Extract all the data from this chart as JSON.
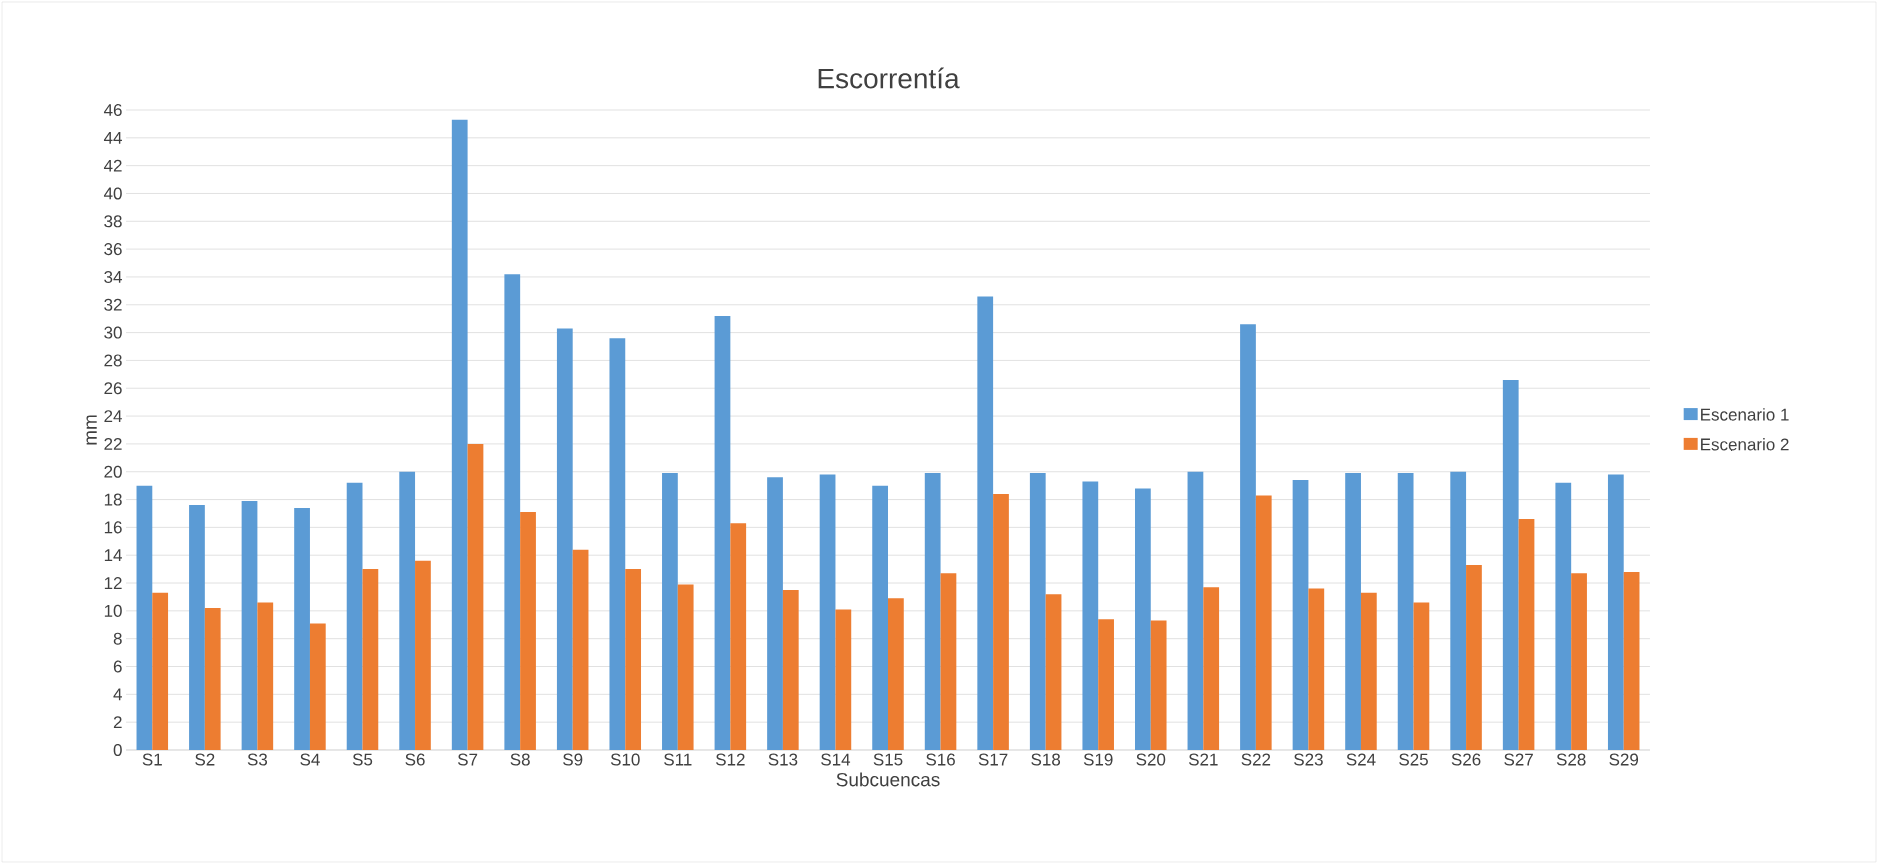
{
  "chart_data": {
    "type": "bar",
    "title": "Escorrentía",
    "xlabel": "Subcuencas",
    "ylabel": "mm",
    "categories": [
      "S1",
      "S2",
      "S3",
      "S4",
      "S5",
      "S6",
      "S7",
      "S8",
      "S9",
      "S10",
      "S11",
      "S12",
      "S13",
      "S14",
      "S15",
      "S16",
      "S17",
      "S18",
      "S19",
      "S20",
      "S21",
      "S22",
      "S23",
      "S24",
      "S25",
      "S26",
      "S27",
      "S28",
      "S29"
    ],
    "series": [
      {
        "name": "Escenario 1",
        "color": "#5b9bd5",
        "values": [
          19.0,
          17.6,
          17.9,
          17.4,
          19.2,
          20.0,
          45.3,
          34.2,
          30.3,
          29.6,
          19.9,
          31.2,
          19.6,
          19.8,
          19.0,
          19.9,
          32.6,
          19.9,
          19.3,
          18.8,
          20.0,
          30.6,
          19.4,
          19.9,
          19.9,
          20.0,
          26.6,
          19.2,
          19.8
        ]
      },
      {
        "name": "Escenario 2",
        "color": "#ed7d31",
        "values": [
          11.3,
          10.2,
          10.6,
          9.1,
          13.0,
          13.6,
          22.0,
          17.1,
          14.4,
          13.0,
          11.9,
          16.3,
          11.5,
          10.1,
          10.9,
          12.7,
          18.4,
          11.2,
          9.4,
          9.3,
          11.7,
          18.3,
          11.6,
          11.3,
          10.6,
          13.3,
          16.6,
          12.7,
          12.8
        ]
      }
    ],
    "ylim": [
      0,
      46
    ],
    "yticks": [
      0,
      2,
      4,
      6,
      8,
      10,
      12,
      14,
      16,
      18,
      20,
      22,
      24,
      26,
      28,
      30,
      32,
      34,
      36,
      38,
      40,
      42,
      44,
      46
    ],
    "grid": "y",
    "legend": "right"
  }
}
